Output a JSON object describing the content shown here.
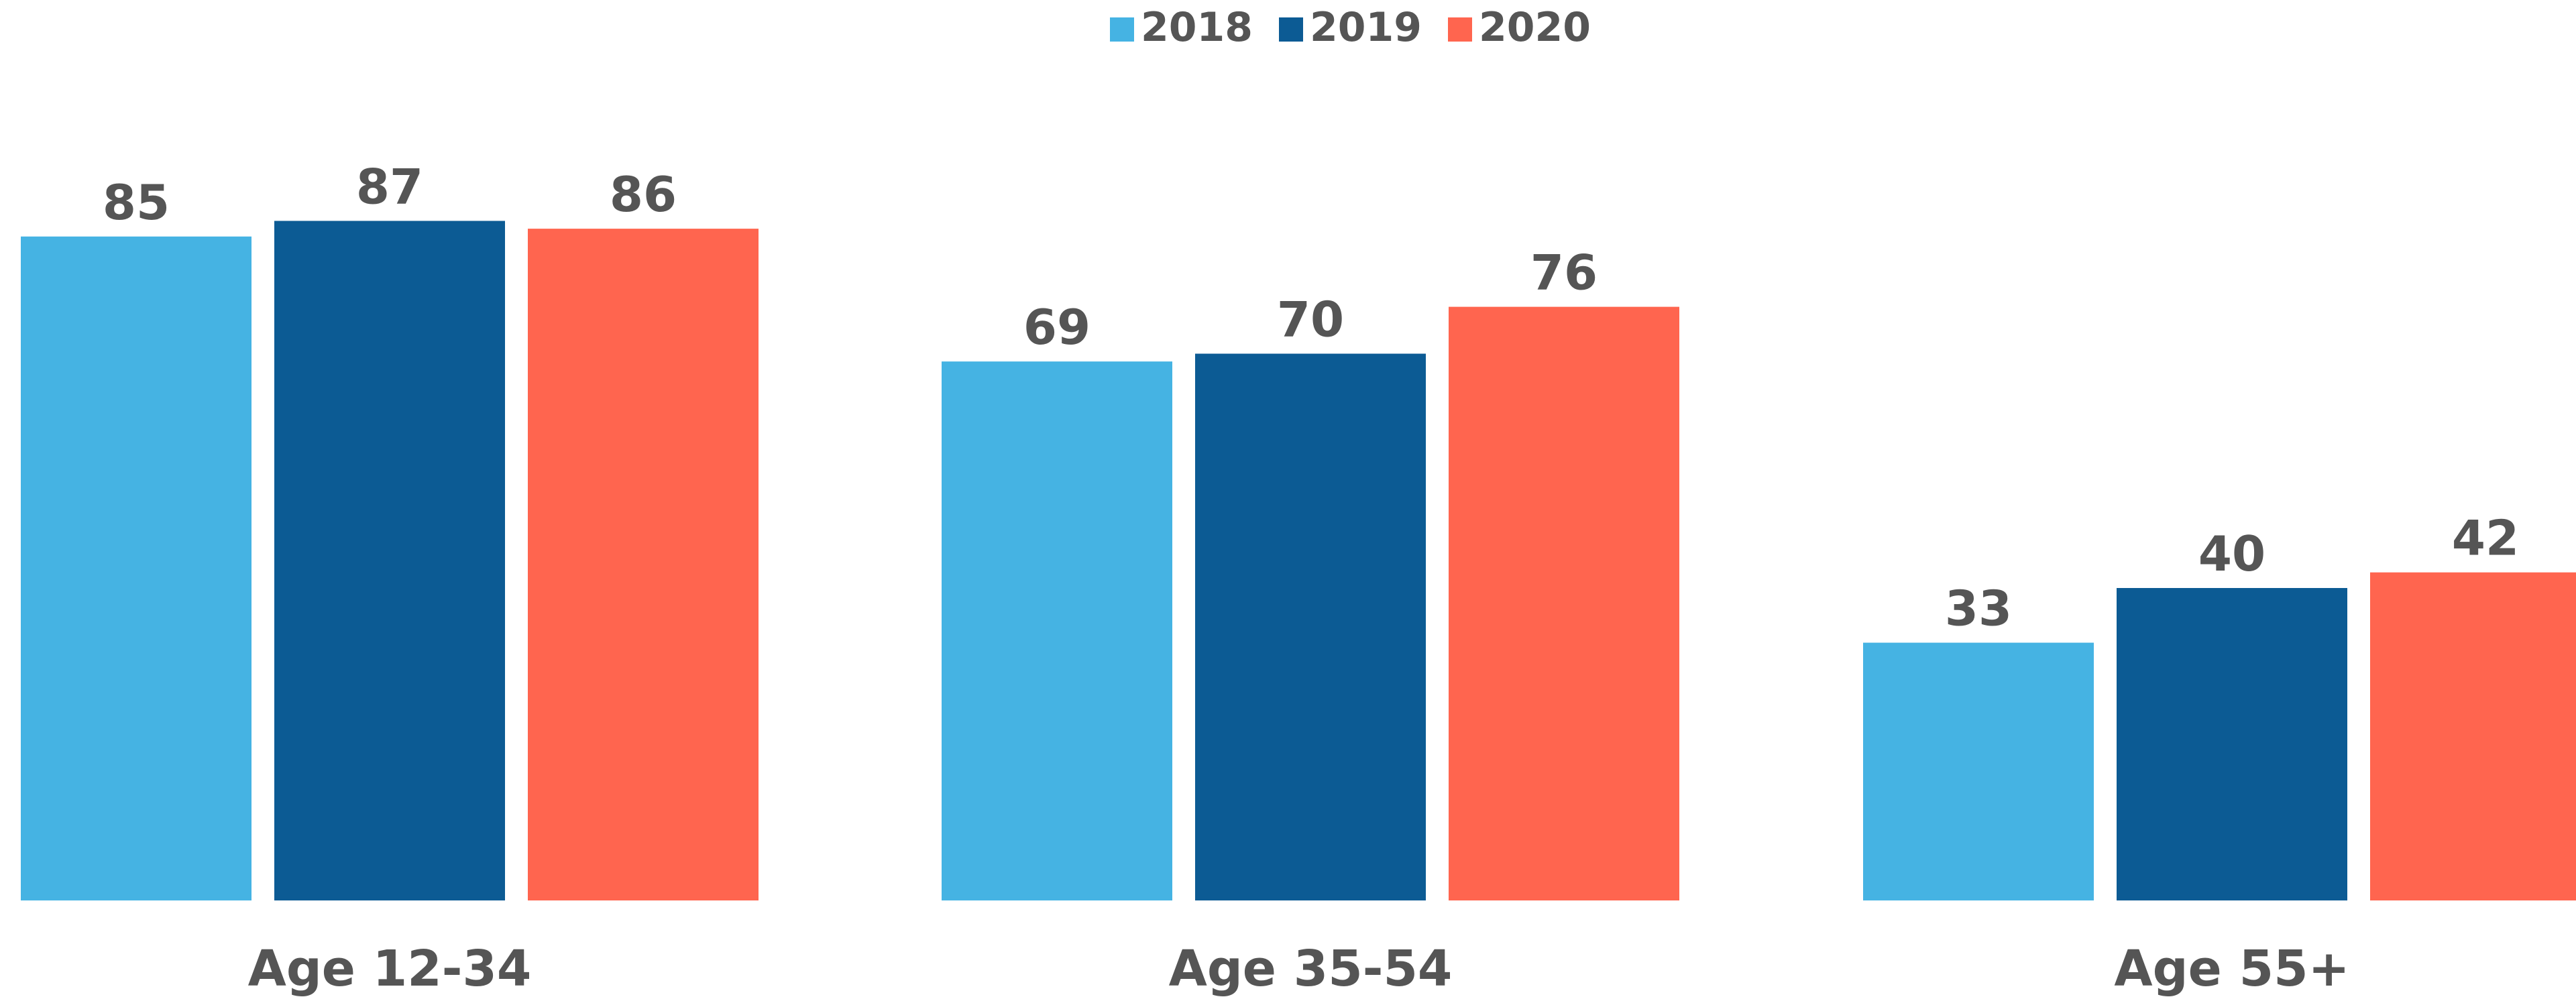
{
  "chart_data": {
    "type": "bar",
    "categories": [
      "Age 12-34",
      "Age 35-54",
      "Age 55+"
    ],
    "series": [
      {
        "name": "2018",
        "values": [
          85,
          69,
          33
        ],
        "color": "#45B3E3"
      },
      {
        "name": "2019",
        "values": [
          87,
          70,
          40
        ],
        "color": "#0C5B94"
      },
      {
        "name": "2020",
        "values": [
          86,
          76,
          42
        ],
        "color": "#FF654F"
      }
    ],
    "ylim": [
      0,
      100
    ],
    "grid": false,
    "legend": "top-center",
    "title": "",
    "xlabel": "",
    "ylabel": ""
  }
}
